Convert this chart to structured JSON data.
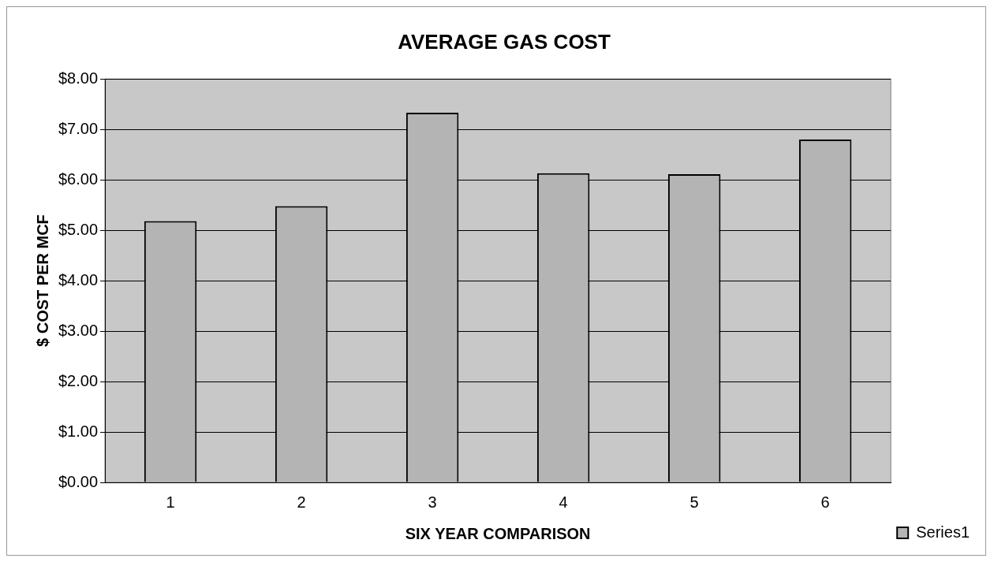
{
  "chart_data": {
    "type": "bar",
    "title": "AVERAGE GAS COST",
    "xlabel": "SIX YEAR COMPARISON",
    "ylabel": "$ COST PER MCF",
    "categories": [
      "1",
      "2",
      "3",
      "4",
      "5",
      "6"
    ],
    "series": [
      {
        "name": "Series1",
        "color": "#b4b4b4",
        "values": [
          5.18,
          5.48,
          7.33,
          6.13,
          6.11,
          6.8
        ]
      }
    ],
    "ylim": [
      0,
      8
    ],
    "yticks": [
      {
        "value": 0,
        "label": "$0.00"
      },
      {
        "value": 1,
        "label": "$1.00"
      },
      {
        "value": 2,
        "label": "$2.00"
      },
      {
        "value": 3,
        "label": "$3.00"
      },
      {
        "value": 4,
        "label": "$4.00"
      },
      {
        "value": 5,
        "label": "$5.00"
      },
      {
        "value": 6,
        "label": "$6.00"
      },
      {
        "value": 7,
        "label": "$7.00"
      },
      {
        "value": 8,
        "label": "$8.00"
      }
    ],
    "grid": "y",
    "legend": "bottom right"
  }
}
